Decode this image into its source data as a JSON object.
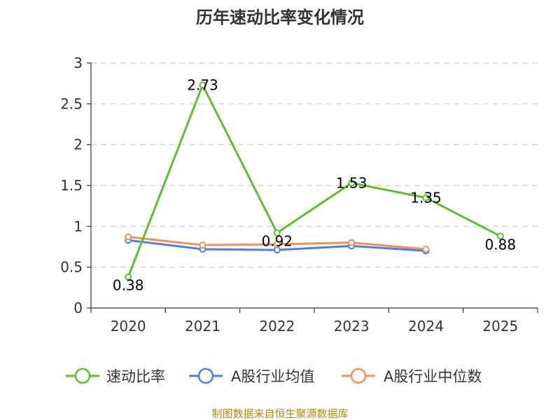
{
  "chart_data": {
    "type": "line",
    "title": "历年速动比率变化情况",
    "categories": [
      "2020",
      "2021",
      "2022",
      "2023",
      "2024",
      "2025"
    ],
    "ylim": [
      0,
      3
    ],
    "yticks": [
      "0",
      "0.5",
      "1",
      "1.5",
      "2",
      "2.5",
      "3"
    ],
    "grid": true,
    "legend_position": "bottom",
    "series": [
      {
        "name": "速动比率",
        "color": "#5cc02d",
        "values": [
          0.38,
          2.73,
          0.92,
          1.53,
          1.35,
          0.88
        ],
        "labels": [
          "0.38",
          "2.73",
          "0.92",
          "1.53",
          "1.35",
          "0.88"
        ]
      },
      {
        "name": "A股行业均值",
        "color": "#4e7fdc",
        "values": [
          0.83,
          0.72,
          0.71,
          0.76,
          0.7,
          null
        ]
      },
      {
        "name": "A股行业中位数",
        "color": "#f0905a",
        "values": [
          0.87,
          0.77,
          0.78,
          0.8,
          0.72,
          null
        ]
      }
    ],
    "source": "制图数据来自恒生聚源数据库"
  }
}
